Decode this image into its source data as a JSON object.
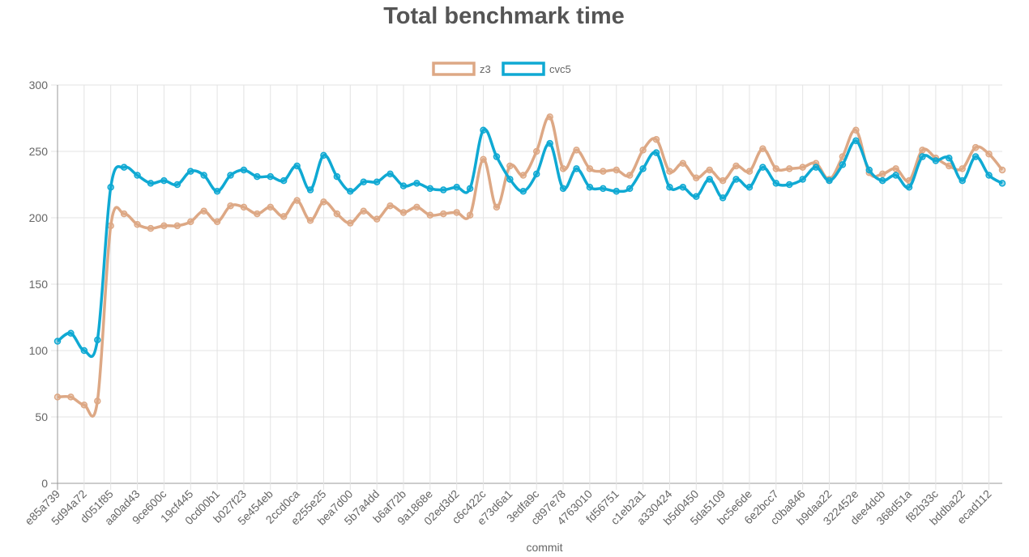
{
  "chart_data": {
    "type": "line",
    "title": "Total benchmark time",
    "xlabel": "commit",
    "ylabel": "",
    "ylim": [
      0,
      300
    ],
    "yticks": [
      0,
      50,
      100,
      150,
      200,
      250,
      300
    ],
    "grid": true,
    "legend_position": "top",
    "categories": [
      "e85a739",
      "",
      "5d94a72",
      "",
      "d051f85",
      "",
      "aa0ad43",
      "",
      "9ce600c",
      "",
      "19cf445",
      "",
      "0cd00b1",
      "",
      "b027f23",
      "",
      "5e454eb",
      "",
      "2ccd0ca",
      "",
      "e255e25",
      "",
      "bea7d00",
      "",
      "5b7a4dd",
      "",
      "b6af72b",
      "",
      "9a1868e",
      "",
      "02ed3d2",
      "",
      "c6c422c",
      "",
      "e73d6a1",
      "",
      "3edfa9c",
      "",
      "c897e78",
      "",
      "4763010",
      "",
      "fd56751",
      "",
      "c1eb2a1",
      "",
      "a330424",
      "",
      "b5d0450",
      "",
      "5da5109",
      "",
      "bc5e6de",
      "",
      "6e2bcc7",
      "",
      "c0ba846",
      "",
      "b9daa22",
      "",
      "322452e",
      "",
      "dee4dcb",
      "",
      "368d51a",
      "",
      "f82b33c",
      "",
      "bddba22",
      "",
      "ecad112",
      ""
    ],
    "series": [
      {
        "name": "z3",
        "color": "#dda885",
        "values": [
          65,
          65,
          59,
          62,
          194,
          203,
          195,
          192,
          194,
          194,
          197,
          205,
          197,
          209,
          208,
          203,
          208,
          201,
          213,
          198,
          212,
          203,
          196,
          205,
          199,
          209,
          204,
          208,
          202,
          203,
          204,
          202,
          244,
          208,
          239,
          232,
          250,
          276,
          237,
          251,
          237,
          235,
          236,
          232,
          251,
          259,
          235,
          241,
          230,
          236,
          228,
          239,
          235,
          252,
          237,
          237,
          238,
          241,
          229,
          246,
          266,
          234,
          233,
          237,
          228,
          251,
          245,
          239,
          237,
          253,
          248,
          236
        ]
      },
      {
        "name": "cvc5",
        "color": "#0fa9d3",
        "values": [
          107,
          113,
          100,
          108,
          223,
          238,
          232,
          226,
          228,
          225,
          235,
          232,
          220,
          232,
          236,
          231,
          231,
          228,
          239,
          221,
          247,
          231,
          220,
          227,
          227,
          233,
          224,
          226,
          222,
          221,
          223,
          222,
          266,
          246,
          229,
          220,
          233,
          256,
          222,
          237,
          223,
          222,
          220,
          222,
          237,
          249,
          223,
          223,
          216,
          229,
          215,
          229,
          223,
          238,
          226,
          225,
          229,
          238,
          228,
          240,
          258,
          236,
          228,
          232,
          223,
          246,
          243,
          245,
          228,
          246,
          232,
          226
        ]
      }
    ]
  }
}
